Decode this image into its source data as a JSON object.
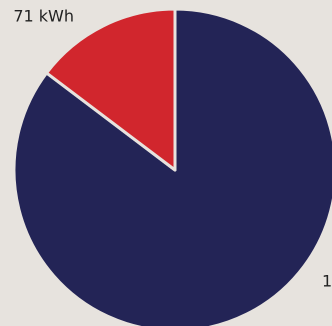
{
  "chart_data": {
    "type": "pie",
    "categories": [
      null,
      null
    ],
    "values": [
      412,
      71
    ],
    "colors": [
      "#232456",
      "#d1262d"
    ],
    "annotations": [
      "71 kWh",
      "1"
    ]
  }
}
